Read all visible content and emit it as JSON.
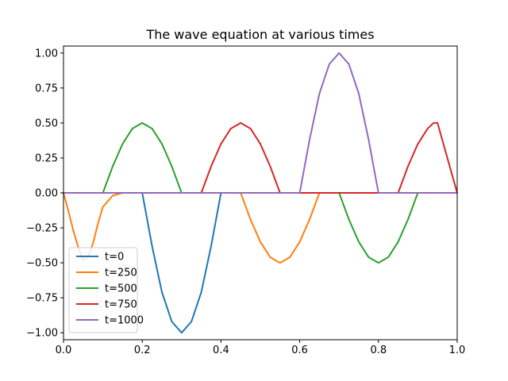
{
  "chart_data": {
    "type": "line",
    "title": "The wave equation at various times",
    "xlabel": "",
    "ylabel": "",
    "xlim": [
      0.0,
      1.0
    ],
    "ylim": [
      -1.05,
      1.05
    ],
    "x_ticks": [
      0.0,
      0.2,
      0.4,
      0.6,
      0.8,
      1.0
    ],
    "x_tick_labels": [
      "0.0",
      "0.2",
      "0.4",
      "0.6",
      "0.8",
      "1.0"
    ],
    "y_ticks": [
      1.0,
      0.75,
      0.5,
      0.25,
      0.0,
      -0.25,
      -0.5,
      -0.75,
      -1.0
    ],
    "y_tick_labels": [
      "1.00",
      "0.75",
      "0.50",
      "0.25",
      "0.00",
      "−0.25",
      "−0.50",
      "−0.75",
      "−1.00"
    ],
    "grid": false,
    "legend_position": "lower-left",
    "series": [
      {
        "name": "t=0",
        "color": "#1f77b4",
        "x": [
          0.0,
          0.2,
          0.225,
          0.25,
          0.275,
          0.3,
          0.325,
          0.35,
          0.375,
          0.4,
          1.0
        ],
        "y": [
          0.0,
          0.0,
          -0.38,
          -0.71,
          -0.92,
          -1.0,
          -0.92,
          -0.71,
          -0.38,
          0.0,
          0.0
        ]
      },
      {
        "name": "t=250",
        "color": "#ff7f0e",
        "x": [
          0.0,
          0.0125,
          0.025,
          0.0375,
          0.05,
          0.0625,
          0.075,
          0.0875,
          0.1,
          0.125,
          0.15,
          0.45,
          0.475,
          0.5,
          0.525,
          0.55,
          0.575,
          0.6,
          0.625,
          0.65,
          1.0
        ],
        "y": [
          0.0,
          -0.13,
          -0.27,
          -0.39,
          -0.48,
          -0.46,
          -0.36,
          -0.22,
          -0.1,
          -0.02,
          0.0,
          0.0,
          -0.19,
          -0.35,
          -0.46,
          -0.5,
          -0.46,
          -0.35,
          -0.19,
          0.0,
          0.0
        ]
      },
      {
        "name": "t=500",
        "color": "#2ca02c",
        "x": [
          0.0,
          0.1,
          0.125,
          0.15,
          0.175,
          0.2,
          0.225,
          0.25,
          0.275,
          0.3,
          0.7,
          0.725,
          0.75,
          0.775,
          0.8,
          0.825,
          0.85,
          0.875,
          0.9,
          1.0
        ],
        "y": [
          0.0,
          0.0,
          0.19,
          0.35,
          0.46,
          0.5,
          0.46,
          0.35,
          0.19,
          0.0,
          0.0,
          -0.19,
          -0.35,
          -0.46,
          -0.5,
          -0.46,
          -0.35,
          -0.19,
          0.0,
          0.0
        ]
      },
      {
        "name": "t=750",
        "color": "#d62728",
        "x": [
          0.0,
          0.35,
          0.375,
          0.4,
          0.425,
          0.45,
          0.475,
          0.5,
          0.525,
          0.55,
          0.85,
          0.875,
          0.9,
          0.925,
          0.94,
          0.95,
          1.0
        ],
        "y": [
          0.0,
          0.0,
          0.19,
          0.35,
          0.46,
          0.5,
          0.46,
          0.35,
          0.19,
          0.0,
          0.0,
          0.19,
          0.35,
          0.46,
          0.5,
          0.5,
          0.0
        ]
      },
      {
        "name": "t=1000",
        "color": "#9467bd",
        "x": [
          0.0,
          0.6,
          0.625,
          0.65,
          0.675,
          0.7,
          0.725,
          0.75,
          0.775,
          0.8,
          1.0
        ],
        "y": [
          0.0,
          0.0,
          0.38,
          0.71,
          0.92,
          1.0,
          0.92,
          0.71,
          0.38,
          0.0,
          0.0
        ]
      }
    ]
  }
}
